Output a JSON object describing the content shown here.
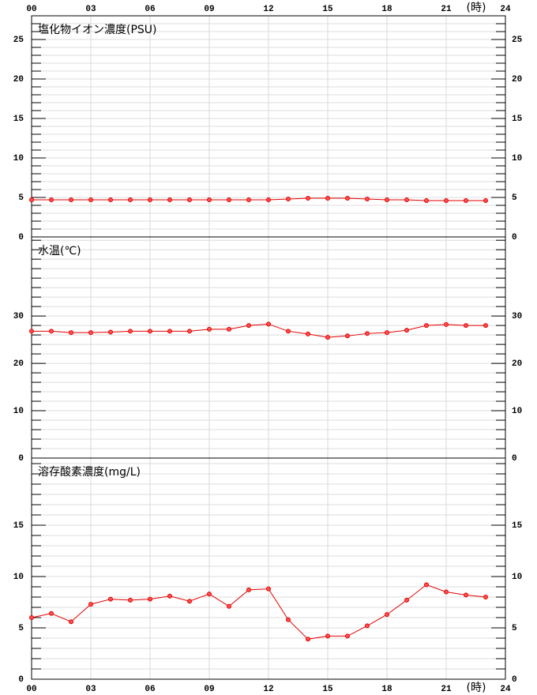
{
  "x_axis": {
    "xlim": [
      0,
      24
    ],
    "label": "(時)",
    "xticks": [
      {
        "value": 0,
        "label": "00"
      },
      {
        "value": 3,
        "label": "03"
      },
      {
        "value": 6,
        "label": "06"
      },
      {
        "value": 9,
        "label": "09"
      },
      12,
      15,
      18,
      21,
      24
    ]
  },
  "chart_data": [
    {
      "type": "line",
      "title": "塩化物イオン濃度(PSU)",
      "color": "#e00000",
      "grid": true,
      "x": [
        0,
        1,
        2,
        3,
        4,
        5,
        6,
        7,
        8,
        9,
        10,
        11,
        12,
        13,
        14,
        15,
        16,
        17,
        18,
        19,
        20,
        21,
        22,
        23
      ],
      "values": [
        4.7,
        4.7,
        4.7,
        4.7,
        4.7,
        4.7,
        4.7,
        4.7,
        4.7,
        4.7,
        4.7,
        4.7,
        4.7,
        4.8,
        4.9,
        4.9,
        4.9,
        4.8,
        4.7,
        4.7,
        4.6,
        4.6,
        4.6,
        4.6
      ],
      "ylim": [
        0,
        28
      ],
      "yticks": [
        0,
        5,
        10,
        15,
        20,
        25
      ],
      "minor_yticks": [
        1,
        2,
        3,
        4,
        6,
        7,
        8,
        9,
        11,
        12,
        13,
        14,
        16,
        17,
        18,
        19,
        21,
        22,
        23,
        24,
        26,
        27
      ]
    },
    {
      "type": "line",
      "title": "水温(℃)",
      "color": "#e00000",
      "grid": true,
      "x": [
        0,
        1,
        2,
        3,
        4,
        5,
        6,
        7,
        8,
        9,
        10,
        11,
        12,
        13,
        14,
        15,
        16,
        17,
        18,
        19,
        20,
        21,
        22,
        23
      ],
      "values": [
        26.8,
        26.8,
        26.5,
        26.5,
        26.6,
        26.8,
        26.8,
        26.8,
        26.8,
        27.2,
        27.2,
        28.0,
        28.3,
        26.8,
        26.2,
        25.5,
        25.8,
        26.3,
        26.5,
        27.0,
        28.0,
        28.2,
        28.0,
        28.0
      ],
      "ylim": [
        0,
        46.7
      ],
      "yticks": [
        0,
        10,
        20,
        30
      ],
      "minor_yticks": [
        2,
        4,
        6,
        8,
        12,
        14,
        16,
        18,
        22,
        24,
        26,
        28,
        32,
        34,
        36,
        38,
        40,
        42,
        44,
        46
      ]
    },
    {
      "type": "line",
      "title": "溶存酸素濃度(mg/L)",
      "color": "#e00000",
      "grid": true,
      "x": [
        0,
        1,
        2,
        3,
        4,
        5,
        6,
        7,
        8,
        9,
        10,
        11,
        12,
        13,
        14,
        15,
        16,
        17,
        18,
        19,
        20,
        21,
        22,
        23
      ],
      "values": [
        6.0,
        6.4,
        5.6,
        7.3,
        7.8,
        7.7,
        7.8,
        8.1,
        7.6,
        8.3,
        7.1,
        8.7,
        8.8,
        5.8,
        3.9,
        4.2,
        4.2,
        5.2,
        6.3,
        7.7,
        9.2,
        8.5,
        8.2,
        8.0
      ],
      "ylim": [
        0,
        21.54
      ],
      "yticks": [
        0,
        5,
        10,
        15
      ],
      "minor_yticks": [
        1,
        2,
        3,
        4,
        6,
        7,
        8,
        9,
        11,
        12,
        13,
        14,
        16,
        17,
        18,
        19,
        20,
        21
      ]
    }
  ]
}
